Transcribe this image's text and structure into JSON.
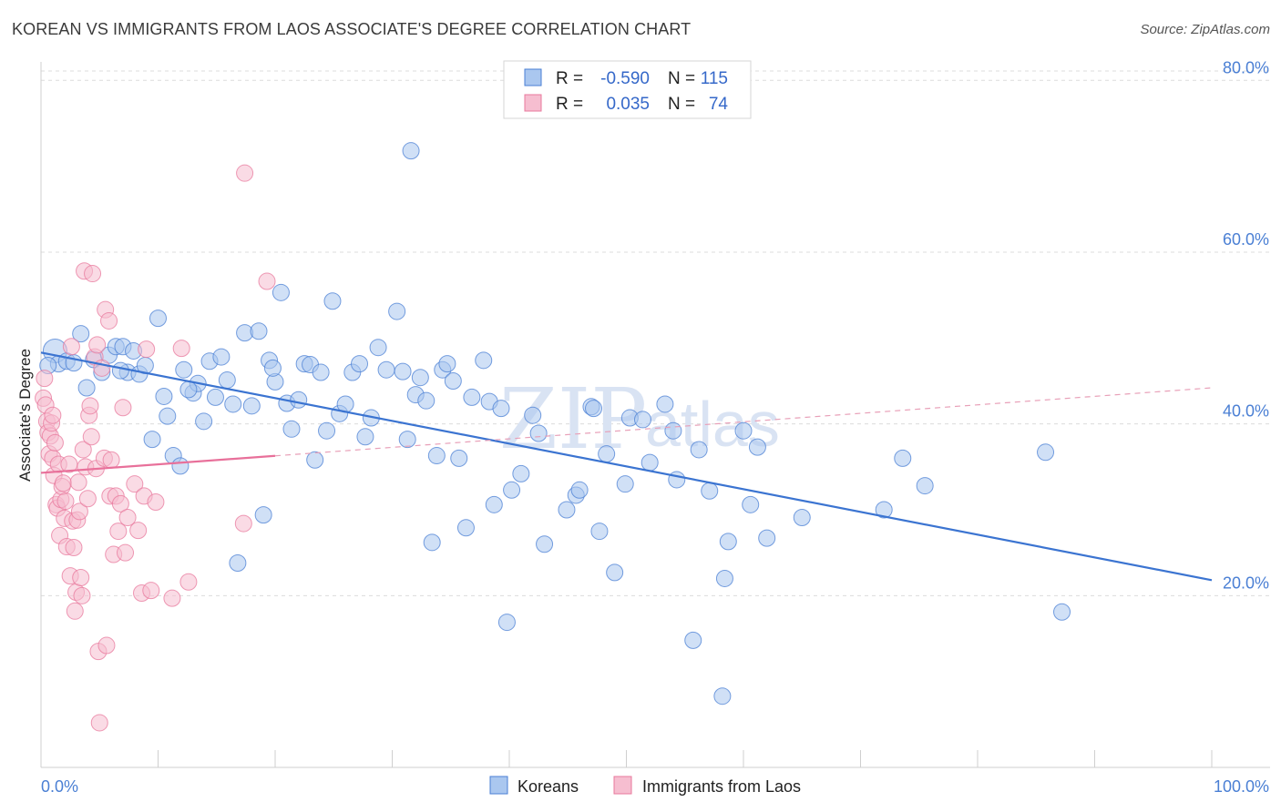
{
  "header": {
    "title": "KOREAN VS IMMIGRANTS FROM LAOS ASSOCIATE'S DEGREE CORRELATION CHART",
    "source": "Source: ZipAtlas.com"
  },
  "watermark": {
    "zip": "ZIP",
    "atlas": "atlas"
  },
  "legend_stats": [
    {
      "r_label": "R =",
      "r_value": "-0.590",
      "n_label": "N =",
      "n_value": "115",
      "color": "#4a7fd4",
      "fill": "#aac7ef"
    },
    {
      "r_label": "R =",
      "r_value": "0.035",
      "n_label": "N =",
      "n_value": "74",
      "color": "#e8789c",
      "fill": "#f6bed0"
    }
  ],
  "chart_data": {
    "type": "scatter",
    "xlabel": "",
    "ylabel": "Associate's Degree",
    "xlim": [
      0,
      100
    ],
    "ylim": [
      0,
      83
    ],
    "x_tick_labels": [
      "0.0%",
      "100.0%"
    ],
    "y_ticks": [
      {
        "value": 20,
        "label": "20.0%"
      },
      {
        "value": 40,
        "label": "40.0%"
      },
      {
        "value": 60,
        "label": "60.0%"
      },
      {
        "value": 80,
        "label": "80.0%"
      }
    ],
    "grid": "horizontal-dashed",
    "series": [
      {
        "name": "Koreans",
        "color": "#4a7fd4",
        "fill": "#aac7ef",
        "trend": {
          "x": [
            0,
            100
          ],
          "y": [
            48.3,
            21.8
          ],
          "style": "solid"
        },
        "points": [
          [
            1.2,
            48.5
          ],
          [
            1.5,
            47.0
          ],
          [
            2.2,
            47.3
          ],
          [
            3.4,
            50.5
          ],
          [
            3.9,
            44.2
          ],
          [
            4.5,
            47.5
          ],
          [
            5.2,
            46.0
          ],
          [
            5.8,
            48.0
          ],
          [
            6.4,
            49.0
          ],
          [
            7.0,
            49.0
          ],
          [
            7.4,
            46.0
          ],
          [
            7.9,
            48.5
          ],
          [
            8.4,
            45.8
          ],
          [
            8.9,
            46.8
          ],
          [
            9.5,
            38.2
          ],
          [
            10.0,
            52.3
          ],
          [
            10.5,
            43.2
          ],
          [
            10.8,
            40.9
          ],
          [
            11.3,
            36.3
          ],
          [
            11.9,
            35.1
          ],
          [
            12.2,
            46.3
          ],
          [
            13.0,
            43.6
          ],
          [
            13.4,
            44.7
          ],
          [
            13.9,
            40.3
          ],
          [
            14.4,
            47.3
          ],
          [
            14.9,
            43.1
          ],
          [
            15.4,
            47.8
          ],
          [
            15.9,
            45.1
          ],
          [
            16.4,
            42.3
          ],
          [
            16.8,
            23.8
          ],
          [
            17.4,
            50.6
          ],
          [
            18.0,
            42.1
          ],
          [
            18.6,
            50.8
          ],
          [
            19.0,
            29.4
          ],
          [
            19.5,
            47.4
          ],
          [
            20.0,
            44.9
          ],
          [
            20.5,
            55.3
          ],
          [
            21.0,
            42.4
          ],
          [
            21.4,
            39.4
          ],
          [
            22.0,
            42.8
          ],
          [
            22.5,
            47.0
          ],
          [
            23.0,
            46.9
          ],
          [
            23.4,
            35.8
          ],
          [
            23.9,
            46.0
          ],
          [
            24.4,
            39.2
          ],
          [
            24.9,
            54.3
          ],
          [
            25.5,
            41.2
          ],
          [
            26.0,
            42.3
          ],
          [
            26.6,
            46.0
          ],
          [
            27.2,
            47.0
          ],
          [
            27.7,
            38.5
          ],
          [
            28.2,
            40.7
          ],
          [
            28.8,
            48.9
          ],
          [
            29.5,
            46.3
          ],
          [
            30.4,
            53.1
          ],
          [
            30.9,
            46.1
          ],
          [
            31.3,
            38.2
          ],
          [
            31.6,
            71.8
          ],
          [
            32.0,
            43.4
          ],
          [
            32.4,
            45.4
          ],
          [
            32.9,
            42.7
          ],
          [
            33.4,
            26.2
          ],
          [
            33.8,
            36.3
          ],
          [
            34.3,
            46.3
          ],
          [
            34.7,
            47.0
          ],
          [
            35.2,
            45.0
          ],
          [
            35.7,
            36.0
          ],
          [
            36.3,
            27.9
          ],
          [
            36.8,
            43.1
          ],
          [
            37.8,
            47.4
          ],
          [
            38.3,
            42.6
          ],
          [
            38.7,
            30.6
          ],
          [
            39.3,
            41.8
          ],
          [
            39.8,
            16.9
          ],
          [
            40.2,
            32.3
          ],
          [
            41.0,
            34.2
          ],
          [
            42.0,
            41.0
          ],
          [
            42.5,
            38.9
          ],
          [
            43.0,
            26.0
          ],
          [
            44.9,
            30.0
          ],
          [
            45.7,
            31.7
          ],
          [
            46.0,
            32.3
          ],
          [
            47.0,
            42.0
          ],
          [
            47.2,
            41.8
          ],
          [
            47.7,
            27.5
          ],
          [
            48.3,
            36.5
          ],
          [
            49.0,
            22.7
          ],
          [
            49.9,
            33.0
          ],
          [
            50.3,
            40.7
          ],
          [
            51.4,
            40.5
          ],
          [
            52.0,
            35.5
          ],
          [
            53.3,
            42.3
          ],
          [
            54.0,
            39.2
          ],
          [
            54.3,
            33.5
          ],
          [
            55.7,
            14.8
          ],
          [
            56.2,
            37.0
          ],
          [
            57.1,
            32.2
          ],
          [
            58.2,
            8.3
          ],
          [
            58.4,
            22.0
          ],
          [
            58.7,
            26.3
          ],
          [
            60.0,
            39.2
          ],
          [
            60.6,
            30.6
          ],
          [
            61.2,
            37.3
          ],
          [
            62.0,
            26.7
          ],
          [
            65.0,
            29.1
          ],
          [
            72.0,
            30.0
          ],
          [
            73.6,
            36.0
          ],
          [
            75.5,
            32.8
          ],
          [
            85.8,
            36.7
          ],
          [
            87.2,
            18.1
          ],
          [
            0.6,
            46.8
          ],
          [
            2.8,
            47.1
          ],
          [
            6.8,
            46.2
          ],
          [
            12.6,
            44.0
          ],
          [
            19.8,
            46.5
          ]
        ]
      },
      {
        "name": "Immigrants from Laos",
        "color": "#e8789c",
        "fill": "#f6bed0",
        "trend": {
          "x": [
            0,
            100
          ],
          "y": [
            34.3,
            44.2
          ],
          "solid_until": 20,
          "style": "solid-then-dashed"
        },
        "points": [
          [
            0.2,
            43.0
          ],
          [
            0.3,
            45.3
          ],
          [
            0.4,
            42.2
          ],
          [
            0.5,
            40.3
          ],
          [
            0.6,
            39.0
          ],
          [
            0.7,
            36.5
          ],
          [
            0.8,
            38.6
          ],
          [
            0.9,
            40.1
          ],
          [
            1.0,
            36.0
          ],
          [
            1.1,
            34.0
          ],
          [
            1.2,
            37.8
          ],
          [
            1.3,
            30.6
          ],
          [
            1.4,
            30.2
          ],
          [
            1.5,
            35.3
          ],
          [
            1.6,
            27.0
          ],
          [
            1.7,
            31.2
          ],
          [
            1.8,
            32.7
          ],
          [
            1.9,
            33.1
          ],
          [
            2.0,
            29.0
          ],
          [
            2.1,
            31.0
          ],
          [
            2.2,
            25.7
          ],
          [
            2.4,
            35.3
          ],
          [
            2.5,
            22.3
          ],
          [
            2.6,
            49.0
          ],
          [
            2.7,
            28.7
          ],
          [
            2.8,
            25.6
          ],
          [
            2.9,
            18.2
          ],
          [
            3.0,
            20.4
          ],
          [
            3.1,
            28.8
          ],
          [
            3.2,
            33.2
          ],
          [
            3.3,
            29.8
          ],
          [
            3.4,
            22.1
          ],
          [
            3.5,
            20.0
          ],
          [
            3.6,
            37.0
          ],
          [
            3.7,
            57.8
          ],
          [
            3.8,
            35.0
          ],
          [
            4.0,
            31.3
          ],
          [
            4.1,
            41.0
          ],
          [
            4.2,
            42.1
          ],
          [
            4.3,
            38.5
          ],
          [
            4.4,
            57.5
          ],
          [
            4.6,
            47.8
          ],
          [
            4.7,
            34.8
          ],
          [
            4.8,
            49.2
          ],
          [
            4.9,
            13.5
          ],
          [
            5.0,
            5.2
          ],
          [
            5.2,
            46.5
          ],
          [
            5.4,
            36.0
          ],
          [
            5.5,
            53.3
          ],
          [
            5.6,
            14.2
          ],
          [
            5.8,
            52.0
          ],
          [
            5.9,
            31.6
          ],
          [
            6.0,
            35.8
          ],
          [
            6.2,
            24.8
          ],
          [
            6.4,
            31.6
          ],
          [
            6.6,
            27.5
          ],
          [
            6.8,
            30.7
          ],
          [
            7.0,
            41.9
          ],
          [
            7.2,
            25.0
          ],
          [
            7.4,
            29.1
          ],
          [
            8.0,
            33.0
          ],
          [
            8.3,
            27.6
          ],
          [
            8.6,
            20.3
          ],
          [
            8.8,
            31.6
          ],
          [
            9.0,
            48.7
          ],
          [
            9.4,
            20.6
          ],
          [
            9.8,
            30.9
          ],
          [
            11.2,
            19.7
          ],
          [
            12.0,
            48.8
          ],
          [
            12.6,
            21.6
          ],
          [
            17.3,
            28.4
          ],
          [
            17.4,
            69.2
          ],
          [
            19.3,
            56.6
          ],
          [
            1.0,
            41.0
          ]
        ]
      }
    ],
    "legend_position": "top-center"
  }
}
